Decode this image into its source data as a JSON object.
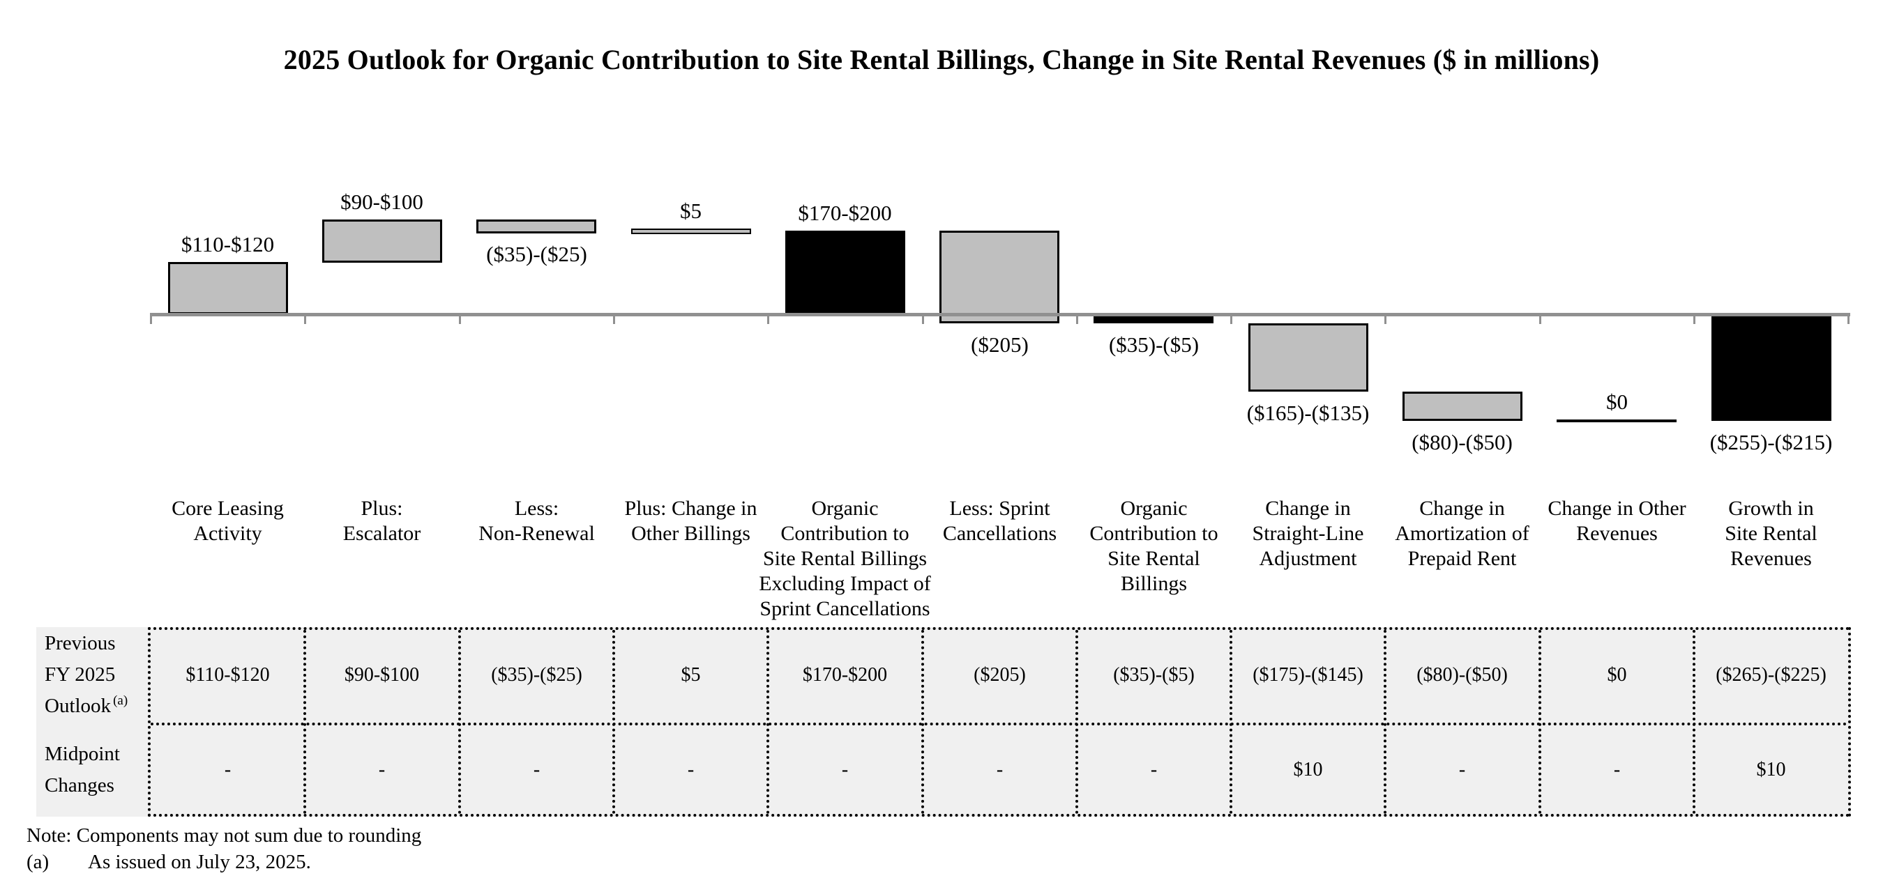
{
  "title": "2025 Outlook for Organic Contribution to Site Rental Billings, Change in Site Rental Revenues ($ in millions)",
  "colors": {
    "gray_fill": "#bfbfbf",
    "black_fill": "#000000",
    "axis": "#909090",
    "table_bg": "#f0f0f0",
    "bar_border": "#000000",
    "background": "#ffffff"
  },
  "chart_data": {
    "type": "bar",
    "subtype": "waterfall",
    "title": "2025 Outlook for Organic Contribution to Site Rental Billings, Change in Site Rental Revenues ($ in millions)",
    "unit": "$ in millions",
    "baseline": 0,
    "grid": false,
    "legend": false,
    "categories": [
      "Core Leasing Activity",
      "Plus: Escalator",
      "Less: Non-Renewal",
      "Plus: Change in Other Billings",
      "Organic Contribution to Site Rental Billings Excluding Impact of Sprint Cancellations",
      "Less: Sprint Cancellations",
      "Organic Contribution to Site Rental Billings",
      "Change in Straight-Line Adjustment",
      "Change in Amortization of Prepaid Rent",
      "Change in Other Revenues",
      "Growth in Site Rental Revenues"
    ],
    "bars": [
      {
        "id": "core-leasing-activity",
        "category_lines": "Core Leasing\nActivity",
        "value_label": "$110-$120",
        "label_pos": "above",
        "from": 0,
        "to": 115,
        "fill": "gray"
      },
      {
        "id": "plus-escalator",
        "category_lines": "Plus:\nEscalator",
        "value_label": "$90-$100",
        "label_pos": "above",
        "from": 115,
        "to": 210,
        "fill": "gray"
      },
      {
        "id": "less-non-renewal",
        "category_lines": "Less:\nNon-Renewal",
        "value_label": "($35)-($25)",
        "label_pos": "below",
        "from": 210,
        "to": 180,
        "fill": "gray"
      },
      {
        "id": "plus-change-in-other-billings",
        "category_lines": "Plus: Change in\nOther Billings",
        "value_label": "$5",
        "label_pos": "above",
        "from": 180,
        "to": 185,
        "fill": "thin"
      },
      {
        "id": "organic-contribution-excluding-sprint",
        "category_lines": "Organic\nContribution to\nSite Rental Billings\nExcluding Impact of\nSprint Cancellations",
        "value_label": "$170-$200",
        "label_pos": "above",
        "from": 0,
        "to": 185,
        "fill": "black"
      },
      {
        "id": "less-sprint-cancellations",
        "category_lines": "Less: Sprint\nCancellations",
        "value_label": "($205)",
        "label_pos": "below",
        "from": 185,
        "to": -20,
        "fill": "gray"
      },
      {
        "id": "organic-contribution-to-site-rental-billings",
        "category_lines": "Organic\nContribution to\nSite Rental\nBillings",
        "value_label": "($35)-($5)",
        "label_pos": "below",
        "from": 0,
        "to": -20,
        "fill": "black"
      },
      {
        "id": "change-in-straight-line-adjustment",
        "category_lines": "Change in\nStraight-Line\nAdjustment",
        "value_label": "($165)-($135)",
        "label_pos": "below",
        "from": -20,
        "to": -170,
        "fill": "gray"
      },
      {
        "id": "change-in-amortization-of-prepaid-rent",
        "category_lines": "Change in\nAmortization of\nPrepaid Rent",
        "value_label": "($80)-($50)",
        "label_pos": "below",
        "from": -170,
        "to": -235,
        "fill": "gray"
      },
      {
        "id": "change-in-other-revenues",
        "category_lines": "Change in Other\nRevenues",
        "value_label": "$0",
        "label_pos": "above",
        "from": -235,
        "to": -235,
        "fill": "line"
      },
      {
        "id": "growth-in-site-rental-revenues",
        "category_lines": "Growth in\nSite Rental\nRevenues",
        "value_label": "($255)-($215)",
        "label_pos": "below",
        "from": 0,
        "to": -235,
        "fill": "black"
      }
    ]
  },
  "table": {
    "row_headers": [
      {
        "lines": "Previous\nFY 2025\nOutlook",
        "sup": "(a)"
      },
      {
        "lines": "Midpoint\nChanges",
        "sup": ""
      }
    ],
    "rows": [
      [
        "$110-$120",
        "$90-$100",
        "($35)-($25)",
        "$5",
        "$170-$200",
        "($205)",
        "($35)-($5)",
        "($175)-($145)",
        "($80)-($50)",
        "$0",
        "($265)-($225)"
      ],
      [
        "-",
        "-",
        "-",
        "-",
        "-",
        "-",
        "-",
        "$10",
        "-",
        "-",
        "$10"
      ]
    ]
  },
  "notes": {
    "note": "Note: Components may not sum due to rounding",
    "footnote_marker": "(a)",
    "footnote_text": "As issued on July 23, 2025."
  }
}
